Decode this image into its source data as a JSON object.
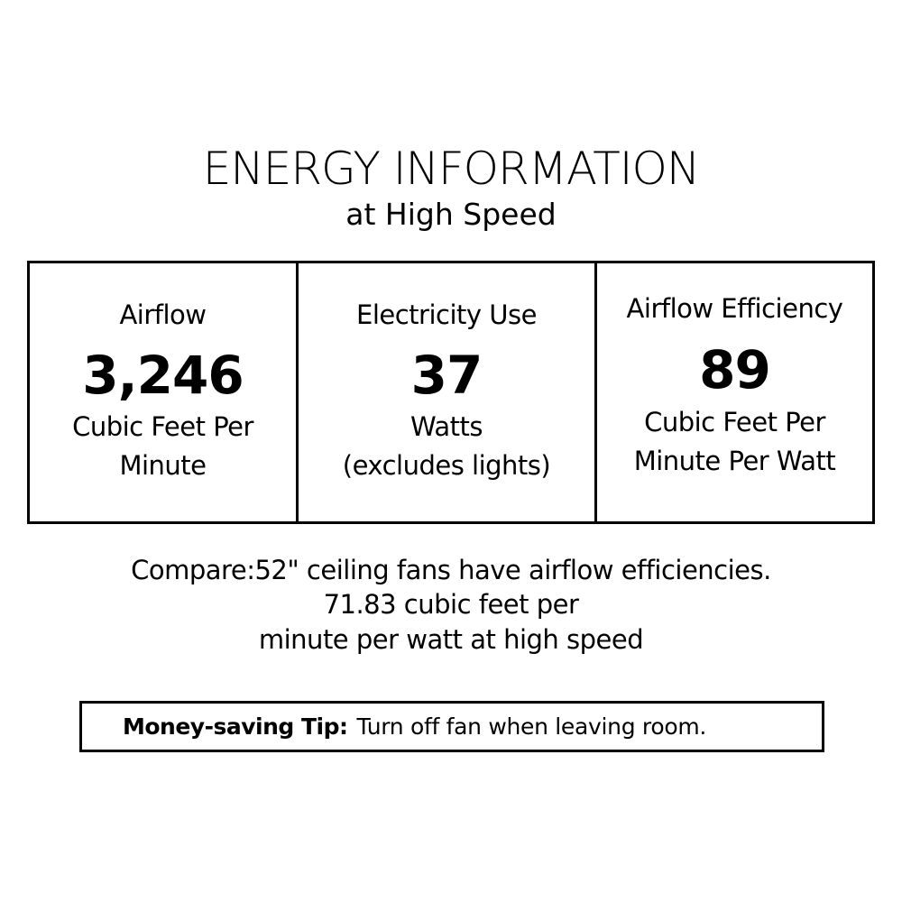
{
  "header": {
    "title": "ENERGY INFORMATION",
    "subtitle": "at High Speed"
  },
  "cells": [
    {
      "label": "Airflow",
      "value": "3,246",
      "unit_lines": [
        "Cubic Feet Per",
        "Minute"
      ]
    },
    {
      "label": "Electricity Use",
      "value": "37",
      "unit_lines": [
        "Watts",
        "(excludes lights)"
      ]
    },
    {
      "label": "Airflow Efficiency",
      "value": "89",
      "unit_lines": [
        "Cubic Feet Per",
        "Minute Per Watt"
      ]
    }
  ],
  "compare": {
    "lines": [
      "Compare:52\" ceiling fans have airflow efficiencies.",
      "71.83 cubic feet per",
      "minute per watt at high speed"
    ]
  },
  "tip": {
    "label": "Money-saving Tip:",
    "text": "Turn off fan when leaving room."
  }
}
